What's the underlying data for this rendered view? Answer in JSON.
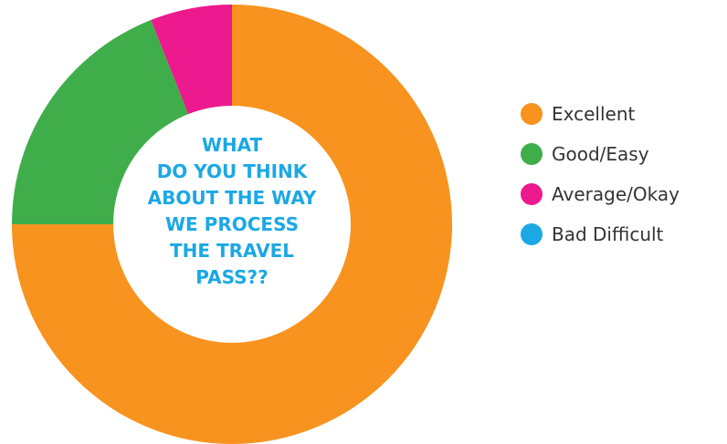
{
  "chart_data": {
    "type": "pie",
    "title_lines": [
      "WHAT",
      "DO YOU THINK",
      "ABOUT THE WAY",
      "WE PROCESS",
      "THE TRAVEL",
      "PASS??"
    ],
    "categories": [
      "Excellent",
      "Good/Easy",
      "Average/Okay",
      "Bad Difficult"
    ],
    "values": [
      75,
      19,
      6,
      0
    ],
    "unit": "%",
    "colors": [
      "#f7931e",
      "#3fae4a",
      "#ec1a8e",
      "#1ba8e5"
    ],
    "legend_position": "right",
    "donut": true
  },
  "colors": {
    "title": "#1ba8e5",
    "legend_text": "#333333"
  }
}
